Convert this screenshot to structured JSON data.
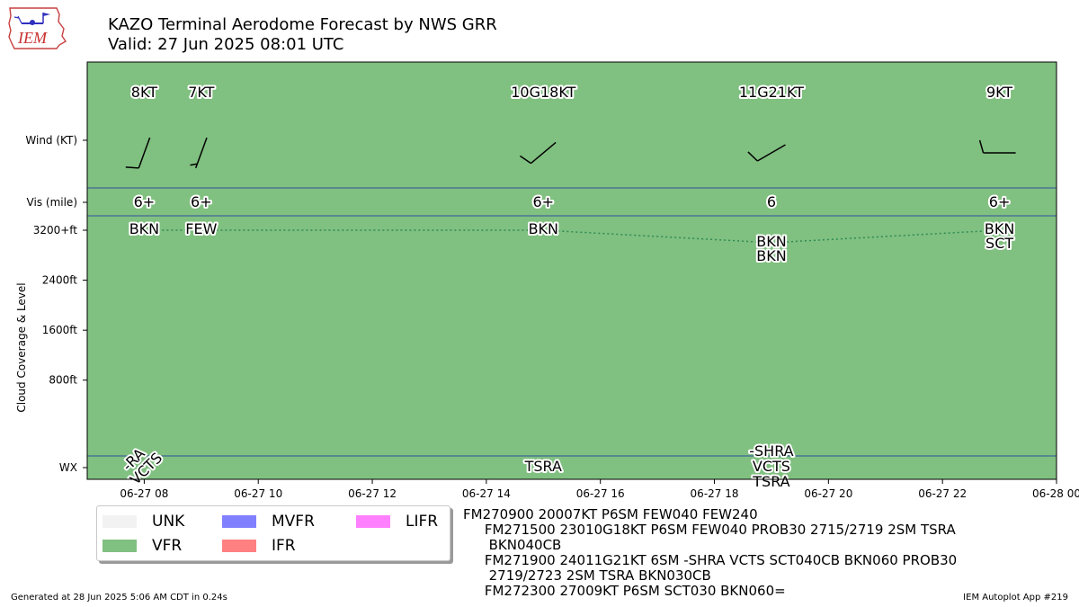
{
  "header": {
    "title": "KAZO Terminal Aerodome Forecast by NWS GRR",
    "subtitle": "Valid: 27 Jun 2025 08:01 UTC",
    "logo_text": "IEM"
  },
  "colors": {
    "vfr": "#80c080",
    "unk": "#f2f2f2",
    "mvfr": "#8080ff",
    "ifr": "#ff8080",
    "lifr": "#ff80ff",
    "divider": "#3050a0",
    "cloud_line": "#2e8b57"
  },
  "chart_data": {
    "type": "timeline",
    "ylabel": "Cloud Coverage & Level",
    "x_range": [
      "2025-06-27T07:00",
      "2025-06-28T00:00"
    ],
    "x_ticks": [
      {
        "t": "2025-06-27T08:00",
        "label": "06-27 08"
      },
      {
        "t": "2025-06-27T10:00",
        "label": "06-27 10"
      },
      {
        "t": "2025-06-27T12:00",
        "label": "06-27 12"
      },
      {
        "t": "2025-06-27T14:00",
        "label": "06-27 14"
      },
      {
        "t": "2025-06-27T16:00",
        "label": "06-27 16"
      },
      {
        "t": "2025-06-27T18:00",
        "label": "06-27 18"
      },
      {
        "t": "2025-06-27T20:00",
        "label": "06-27 20"
      },
      {
        "t": "2025-06-27T22:00",
        "label": "06-27 22"
      },
      {
        "t": "2025-06-28T00:00",
        "label": "06-28 00"
      }
    ],
    "row_labels": {
      "wind": "Wind (KT)",
      "vis": "Vis (mile)",
      "wx": "WX"
    },
    "y_ticks": [
      {
        "value": 3200,
        "label": "3200+ft"
      },
      {
        "value": 2400,
        "label": "2400ft"
      },
      {
        "value": 1600,
        "label": "1600ft"
      },
      {
        "value": 800,
        "label": "800ft"
      }
    ],
    "cloud_ylim": [
      -600,
      3200
    ],
    "wind": [
      {
        "t": "2025-06-27T08:00",
        "label": "8KT",
        "dir": 200,
        "speed": 8
      },
      {
        "t": "2025-06-27T09:00",
        "label": "7KT",
        "dir": 200,
        "speed": 7
      },
      {
        "t": "2025-06-27T15:00",
        "label": "10G18KT",
        "dir": 230,
        "speed": 10
      },
      {
        "t": "2025-06-27T19:00",
        "label": "11G21KT",
        "dir": 240,
        "speed": 11
      },
      {
        "t": "2025-06-27T23:00",
        "label": "9KT",
        "dir": 270,
        "speed": 9
      }
    ],
    "visibility": [
      {
        "t": "2025-06-27T08:00",
        "label": "6+"
      },
      {
        "t": "2025-06-27T09:00",
        "label": "6+"
      },
      {
        "t": "2025-06-27T15:00",
        "label": "6+"
      },
      {
        "t": "2025-06-27T19:00",
        "label": "6"
      },
      {
        "t": "2025-06-27T23:00",
        "label": "6+"
      }
    ],
    "clouds": [
      {
        "t": "2025-06-27T08:00",
        "labels": [
          "BKN"
        ],
        "level": 3200
      },
      {
        "t": "2025-06-27T09:00",
        "labels": [
          "FEW"
        ],
        "level": 3200
      },
      {
        "t": "2025-06-27T15:00",
        "labels": [
          "BKN"
        ],
        "level": 3200
      },
      {
        "t": "2025-06-27T19:00",
        "labels": [
          "BKN",
          "BKN"
        ],
        "level": 3000
      },
      {
        "t": "2025-06-27T23:00",
        "labels": [
          "BKN",
          "SCT"
        ],
        "level": 3200
      }
    ],
    "weather": [
      {
        "t": "2025-06-27T08:00",
        "lines": [
          "-RA",
          "VCTS"
        ],
        "rotated": true
      },
      {
        "t": "2025-06-27T15:00",
        "lines": [
          "TSRA"
        ],
        "rotated": false
      },
      {
        "t": "2025-06-27T19:00",
        "lines": [
          "-SHRA",
          "VCTS",
          "TSRA"
        ],
        "rotated": false
      }
    ]
  },
  "legend": {
    "items": [
      {
        "label": "UNK",
        "color": "#f2f2f2"
      },
      {
        "label": "VFR",
        "color": "#80c080"
      },
      {
        "label": "MVFR",
        "color": "#8080ff"
      },
      {
        "label": "IFR",
        "color": "#ff8080"
      },
      {
        "label": "LIFR",
        "color": "#ff80ff"
      }
    ]
  },
  "taf_text": "FM270900 20007KT P6SM FEW040 FEW240\n     FM271500 23010G18KT P6SM FEW040 PROB30 2715/2719 2SM TSRA\n      BKN040CB\n     FM271900 24011G21KT 6SM -SHRA VCTS SCT040CB BKN060 PROB30\n      2719/2723 2SM TSRA BKN030CB\n     FM272300 27009KT P6SM SCT030 BKN060=",
  "footer": {
    "generated": "Generated at 28 Jun 2025 5:06 AM CDT in 0.24s",
    "app": "IEM Autoplot App #219"
  }
}
